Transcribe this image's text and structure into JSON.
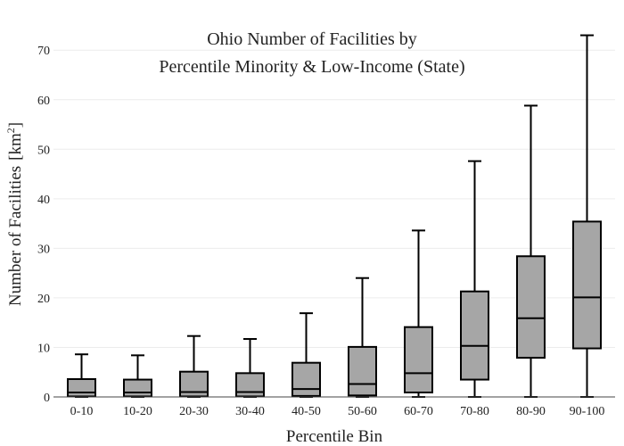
{
  "chart_data": {
    "type": "box",
    "title_lines": [
      "Ohio Number of Facilities by",
      "Percentile Minority & Low-Income (State)"
    ],
    "xlabel": "Percentile Bin",
    "ylabel": "Number of Facilities",
    "ylabel_unit_base": "km",
    "ylabel_unit_exp": "2",
    "ylim": [
      0,
      74
    ],
    "yticks": [
      0,
      10,
      20,
      30,
      40,
      50,
      60,
      70
    ],
    "grid": true,
    "box_color": "#a6a6a6",
    "categories": [
      "0-10",
      "10-20",
      "20-30",
      "30-40",
      "40-50",
      "50-60",
      "60-70",
      "70-80",
      "80-90",
      "90-100"
    ],
    "boxes": [
      {
        "min": 0,
        "q1": 0.1,
        "median": 0.9,
        "q3": 3.6,
        "max": 8.6
      },
      {
        "min": 0,
        "q1": 0.1,
        "median": 0.9,
        "q3": 3.5,
        "max": 8.4
      },
      {
        "min": 0,
        "q1": 0.1,
        "median": 1.0,
        "q3": 5.1,
        "max": 12.3
      },
      {
        "min": 0,
        "q1": 0.1,
        "median": 1.0,
        "q3": 4.8,
        "max": 11.7
      },
      {
        "min": 0,
        "q1": 0.2,
        "median": 1.6,
        "q3": 6.9,
        "max": 16.9
      },
      {
        "min": 0,
        "q1": 0.3,
        "median": 2.6,
        "q3": 10.1,
        "max": 24.0
      },
      {
        "min": 0,
        "q1": 0.9,
        "median": 4.8,
        "q3": 14.1,
        "max": 33.6
      },
      {
        "min": 0,
        "q1": 3.5,
        "median": 10.3,
        "q3": 21.3,
        "max": 47.6
      },
      {
        "min": 0,
        "q1": 7.9,
        "median": 15.9,
        "q3": 28.4,
        "max": 58.8
      },
      {
        "min": 0,
        "q1": 9.8,
        "median": 20.1,
        "q3": 35.4,
        "max": 73.0
      }
    ]
  }
}
